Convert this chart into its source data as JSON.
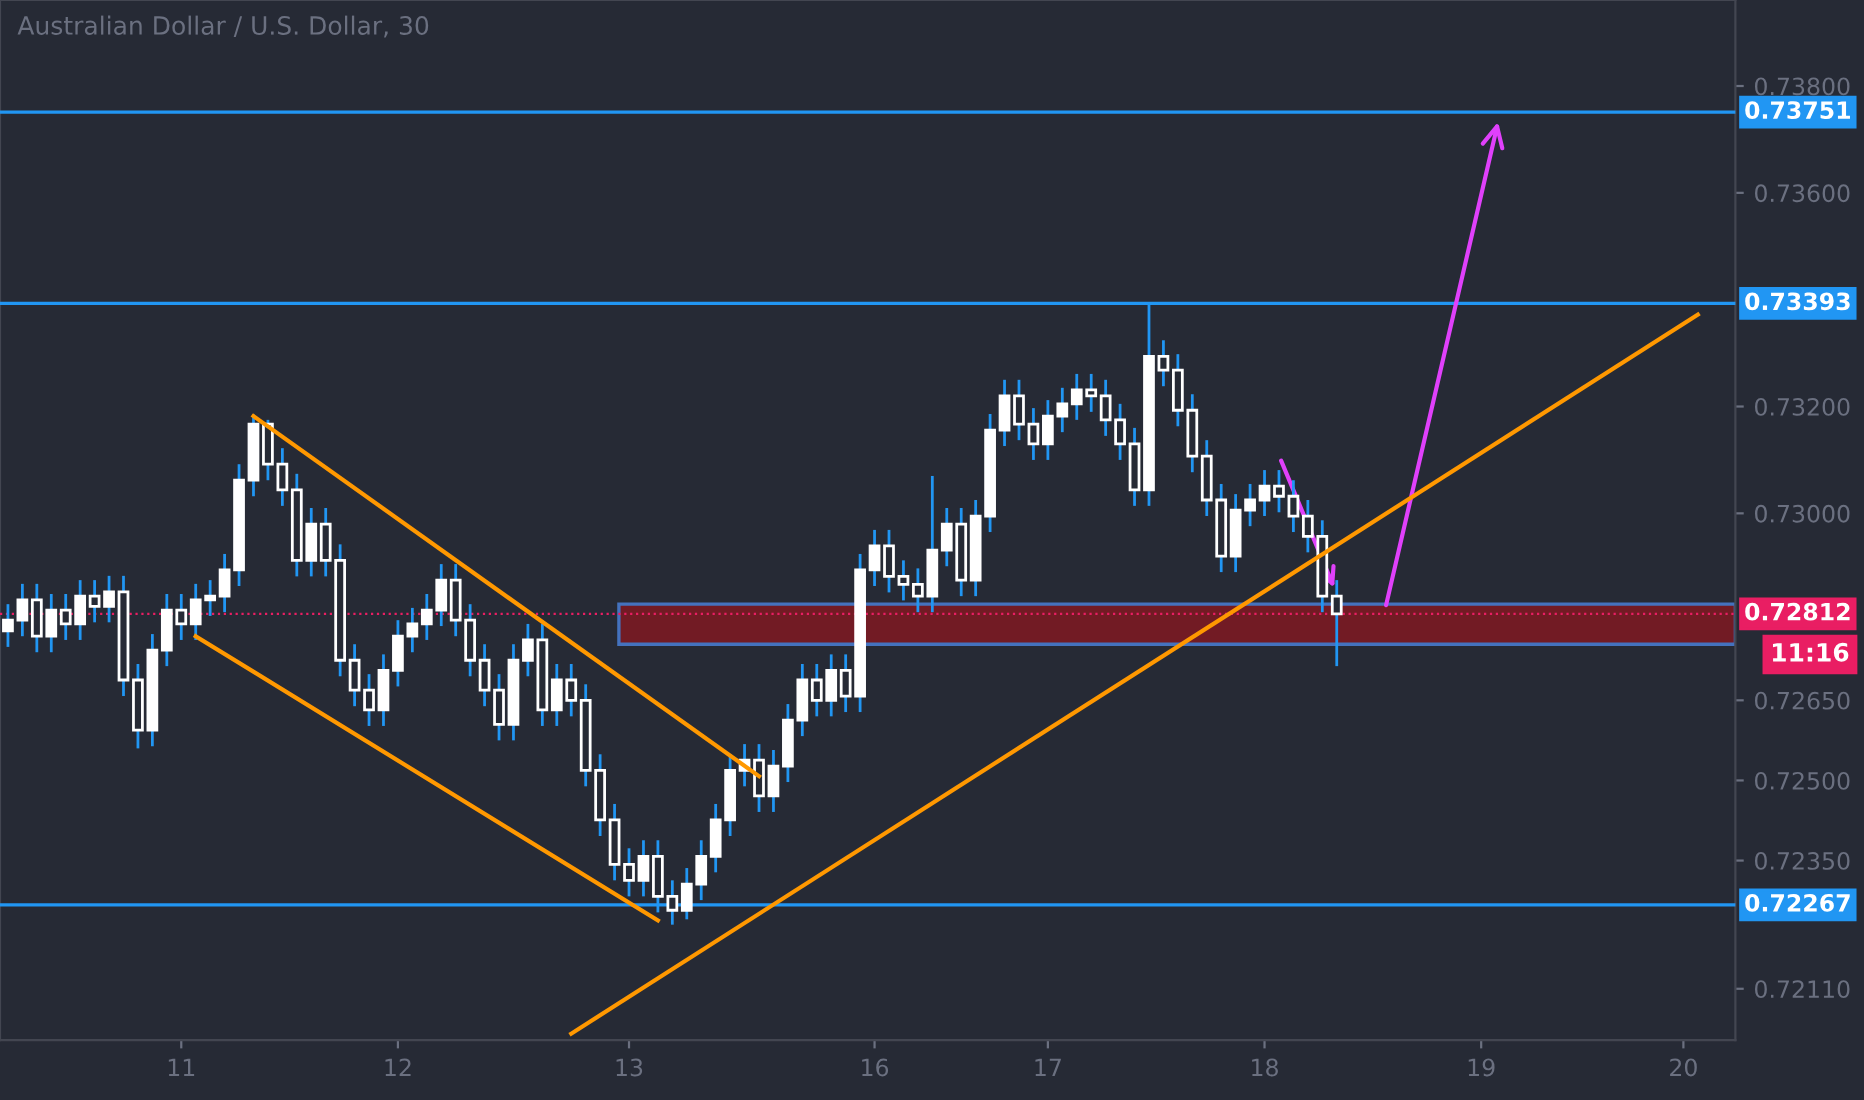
{
  "chart_data": {
    "type": "candlestick",
    "title": "Australian Dollar / U.S. Dollar, 30",
    "categories": [
      null,
      null,
      null,
      null,
      null,
      null,
      null,
      null,
      null,
      null,
      null,
      null,
      "11",
      null,
      null,
      null,
      null,
      null,
      null,
      null,
      null,
      null,
      null,
      null,
      null,
      null,
      null,
      "12",
      null,
      null,
      null,
      null,
      null,
      null,
      null,
      null,
      null,
      null,
      null,
      null,
      null,
      null,
      null,
      "13",
      null,
      null,
      null,
      null,
      null,
      null,
      null,
      null,
      null,
      null,
      null,
      null,
      null,
      null,
      null,
      null,
      "16",
      null,
      null,
      null,
      null,
      null,
      null,
      null,
      null,
      null,
      null,
      null,
      "17",
      null,
      null,
      null,
      null,
      null,
      null,
      null,
      null,
      null,
      null,
      null,
      null,
      null,
      null,
      "18",
      null,
      null,
      null,
      null,
      null,
      null,
      null,
      null,
      null,
      null,
      null,
      null,
      null,
      null,
      "19",
      null,
      null,
      null,
      null,
      null,
      null,
      null,
      null,
      null,
      null,
      null,
      null,
      null,
      "20",
      null
    ],
    "series": [
      {
        "color": "#ffffff",
        "ohlc": [
          [
            0.7278,
            0.7283,
            0.7275,
            0.728
          ],
          [
            0.728,
            0.72868,
            0.7277,
            0.72838
          ],
          [
            0.72838,
            0.72868,
            0.7274,
            0.7277
          ],
          [
            0.7277,
            0.72849,
            0.7274,
            0.72819
          ],
          [
            0.72819,
            0.72849,
            0.72763,
            0.72793
          ],
          [
            0.72793,
            0.72875,
            0.72763,
            0.72845
          ],
          [
            0.72845,
            0.72875,
            0.72796,
            0.72826
          ],
          [
            0.72826,
            0.72883,
            0.72796,
            0.72853
          ],
          [
            0.72853,
            0.72883,
            0.72658,
            0.72688
          ],
          [
            0.72688,
            0.72718,
            0.7256,
            0.72594
          ],
          [
            0.72594,
            0.72774,
            0.72564,
            0.72744
          ],
          [
            0.72744,
            0.72849,
            0.72714,
            0.72819
          ],
          [
            0.72819,
            0.72849,
            0.72763,
            0.72793
          ],
          [
            0.72793,
            0.72868,
            0.72763,
            0.72838
          ],
          [
            0.72838,
            0.72875,
            0.72808,
            0.72845
          ],
          [
            0.72845,
            0.72924,
            0.72815,
            0.72894
          ],
          [
            0.72894,
            0.73092,
            0.72864,
            0.73062
          ],
          [
            0.73062,
            0.73185,
            0.73032,
            0.73167
          ],
          [
            0.73167,
            0.73175,
            0.73062,
            0.73092
          ],
          [
            0.73092,
            0.73122,
            0.73014,
            0.73044
          ],
          [
            0.73044,
            0.73074,
            0.72882,
            0.72912
          ],
          [
            0.72912,
            0.7301,
            0.72882,
            0.7298
          ],
          [
            0.7298,
            0.7301,
            0.72882,
            0.72912
          ],
          [
            0.72912,
            0.72942,
            0.72695,
            0.72725
          ],
          [
            0.72725,
            0.72755,
            0.72639,
            0.72669
          ],
          [
            0.72669,
            0.72699,
            0.72602,
            0.72632
          ],
          [
            0.72632,
            0.72736,
            0.72602,
            0.72706
          ],
          [
            0.72706,
            0.728,
            0.72676,
            0.7277
          ],
          [
            0.7277,
            0.72823,
            0.7274,
            0.72793
          ],
          [
            0.72793,
            0.72849,
            0.72763,
            0.72819
          ],
          [
            0.72819,
            0.72905,
            0.72789,
            0.72875
          ],
          [
            0.72875,
            0.72905,
            0.7277,
            0.728
          ],
          [
            0.728,
            0.7283,
            0.72695,
            0.72725
          ],
          [
            0.72725,
            0.72755,
            0.72639,
            0.72669
          ],
          [
            0.72669,
            0.72699,
            0.72575,
            0.72605
          ],
          [
            0.72605,
            0.72755,
            0.72575,
            0.72725
          ],
          [
            0.72725,
            0.72793,
            0.72695,
            0.72763
          ],
          [
            0.72763,
            0.72793,
            0.72602,
            0.72632
          ],
          [
            0.72632,
            0.72718,
            0.72602,
            0.72688
          ],
          [
            0.72688,
            0.72718,
            0.7262,
            0.7265
          ],
          [
            0.7265,
            0.7268,
            0.72489,
            0.72519
          ],
          [
            0.72519,
            0.72549,
            0.72396,
            0.72426
          ],
          [
            0.72426,
            0.72456,
            0.72313,
            0.72343
          ],
          [
            0.72343,
            0.72373,
            0.72283,
            0.72313
          ],
          [
            0.72313,
            0.72388,
            0.72283,
            0.72358
          ],
          [
            0.72358,
            0.72388,
            0.72253,
            0.72283
          ],
          [
            0.72283,
            0.72313,
            0.7223,
            0.72257
          ],
          [
            0.72257,
            0.72336,
            0.7224,
            0.72306
          ],
          [
            0.72306,
            0.72388,
            0.72276,
            0.72358
          ],
          [
            0.72358,
            0.72456,
            0.72328,
            0.72426
          ],
          [
            0.72426,
            0.72549,
            0.72396,
            0.72519
          ],
          [
            0.72519,
            0.72568,
            0.72489,
            0.72538
          ],
          [
            0.72538,
            0.72568,
            0.72441,
            0.72471
          ],
          [
            0.72471,
            0.72557,
            0.72441,
            0.72527
          ],
          [
            0.72527,
            0.72643,
            0.72497,
            0.72613
          ],
          [
            0.72613,
            0.72718,
            0.72583,
            0.72688
          ],
          [
            0.72688,
            0.72718,
            0.7262,
            0.7265
          ],
          [
            0.7265,
            0.72736,
            0.7262,
            0.72706
          ],
          [
            0.72706,
            0.72736,
            0.72628,
            0.72658
          ],
          [
            0.72658,
            0.72924,
            0.72628,
            0.72894
          ],
          [
            0.72894,
            0.72969,
            0.72864,
            0.72939
          ],
          [
            0.72939,
            0.72969,
            0.72852,
            0.72882
          ],
          [
            0.72882,
            0.72912,
            0.72837,
            0.72867
          ],
          [
            0.72867,
            0.72897,
            0.72815,
            0.72845
          ],
          [
            0.72845,
            0.7307,
            0.72815,
            0.72931
          ],
          [
            0.72931,
            0.7301,
            0.72901,
            0.7298
          ],
          [
            0.7298,
            0.7301,
            0.72845,
            0.72875
          ],
          [
            0.72875,
            0.73025,
            0.72845,
            0.72995
          ],
          [
            0.72995,
            0.73186,
            0.72965,
            0.73156
          ],
          [
            0.73156,
            0.7325,
            0.73126,
            0.7322
          ],
          [
            0.7322,
            0.7325,
            0.73137,
            0.73167
          ],
          [
            0.73167,
            0.73197,
            0.731,
            0.7313
          ],
          [
            0.7313,
            0.73212,
            0.731,
            0.73182
          ],
          [
            0.73182,
            0.73235,
            0.73152,
            0.73205
          ],
          [
            0.73205,
            0.73261,
            0.73175,
            0.73231
          ],
          [
            0.73231,
            0.73261,
            0.7319,
            0.7322
          ],
          [
            0.7322,
            0.7325,
            0.73145,
            0.73175
          ],
          [
            0.73175,
            0.73205,
            0.731,
            0.7313
          ],
          [
            0.7313,
            0.7316,
            0.73014,
            0.73044
          ],
          [
            0.73044,
            0.73393,
            0.73014,
            0.73294
          ],
          [
            0.73294,
            0.73324,
            0.73238,
            0.73268
          ],
          [
            0.73268,
            0.73298,
            0.73163,
            0.73193
          ],
          [
            0.73193,
            0.73223,
            0.73077,
            0.73107
          ],
          [
            0.73107,
            0.73137,
            0.72995,
            0.73025
          ],
          [
            0.73025,
            0.73055,
            0.7289,
            0.7292
          ],
          [
            0.7292,
            0.73036,
            0.7289,
            0.73006
          ],
          [
            0.73006,
            0.73055,
            0.72976,
            0.73025
          ],
          [
            0.73025,
            0.73081,
            0.72995,
            0.73051
          ],
          [
            0.73051,
            0.73081,
            0.73002,
            0.73032
          ],
          [
            0.73032,
            0.73062,
            0.72965,
            0.72995
          ],
          [
            0.72995,
            0.73025,
            0.72927,
            0.72957
          ],
          [
            0.72957,
            0.72987,
            0.72815,
            0.72845
          ],
          [
            0.72845,
            0.72875,
            0.72714,
            0.72812
          ],
          null,
          null,
          null,
          null,
          null,
          null,
          null,
          null,
          null,
          null,
          null,
          null,
          null,
          null,
          null,
          null,
          null,
          null,
          null,
          null,
          null,
          null,
          null,
          null,
          null
        ]
      },
      {
        "type": "line",
        "color": "#ff9800",
        "values": [
          null,
          null,
          null,
          null,
          null,
          null,
          null,
          null,
          null,
          null,
          null,
          null,
          null,
          null,
          null,
          null,
          null,
          0.73182,
          null,
          null,
          null,
          null,
          null,
          null,
          null,
          null,
          null,
          null,
          null,
          null,
          null,
          null,
          null,
          null,
          null,
          null,
          null,
          null,
          null,
          null,
          null,
          null,
          null,
          null,
          null,
          null,
          null,
          null,
          null,
          null,
          null,
          null,
          0.72508,
          null,
          null,
          null,
          null,
          null,
          null,
          null,
          null,
          null,
          null,
          null,
          null,
          null,
          null,
          null,
          null,
          null,
          null,
          null,
          null,
          null,
          null,
          null,
          null,
          null,
          null,
          null,
          null,
          null,
          null,
          null,
          null,
          null,
          null,
          null,
          null,
          null,
          null,
          null,
          null,
          null,
          null,
          null,
          null,
          null,
          null,
          null,
          null,
          null,
          null,
          null,
          null,
          null,
          null,
          null,
          null,
          null,
          null,
          null,
          null,
          null,
          null,
          null,
          null,
          null
        ]
      },
      {
        "type": "line",
        "color": "#ff9800",
        "values": [
          null,
          null,
          null,
          null,
          null,
          null,
          null,
          null,
          null,
          null,
          null,
          null,
          null,
          0.7277,
          null,
          null,
          null,
          null,
          null,
          null,
          null,
          null,
          null,
          null,
          null,
          null,
          null,
          null,
          null,
          null,
          null,
          null,
          null,
          null,
          null,
          null,
          null,
          null,
          null,
          null,
          null,
          null,
          null,
          null,
          null,
          0.72238,
          null,
          null,
          null,
          null,
          null,
          null,
          null,
          null,
          null,
          null,
          null,
          null,
          null,
          null,
          null,
          null,
          null,
          null,
          null,
          null,
          null,
          null,
          null,
          null,
          null,
          null,
          null,
          null,
          null,
          null,
          null,
          null,
          null,
          null,
          null,
          null,
          null,
          null,
          null,
          null,
          null,
          null,
          null,
          null,
          null,
          null,
          null,
          null,
          null,
          null,
          null,
          null,
          null,
          null,
          null,
          null,
          null,
          null,
          null,
          null,
          null,
          null,
          null,
          null,
          null,
          null,
          null,
          null,
          null,
          null,
          null,
          null
        ]
      },
      {
        "type": "line",
        "color": "#ff9800",
        "values": [
          null,
          null,
          null,
          null,
          null,
          null,
          null,
          null,
          null,
          null,
          null,
          null,
          null,
          null,
          null,
          null,
          null,
          null,
          null,
          null,
          null,
          null,
          null,
          null,
          null,
          null,
          null,
          null,
          null,
          null,
          null,
          null,
          null,
          null,
          null,
          null,
          null,
          null,
          null,
          0.72026,
          null,
          null,
          null,
          null,
          null,
          null,
          null,
          null,
          null,
          null,
          null,
          null,
          null,
          null,
          null,
          null,
          null,
          null,
          null,
          null,
          null,
          null,
          null,
          null,
          null,
          null,
          null,
          null,
          null,
          null,
          null,
          null,
          null,
          null,
          null,
          null,
          null,
          null,
          null,
          null,
          null,
          null,
          null,
          null,
          null,
          null,
          null,
          null,
          null,
          null,
          null,
          null,
          null,
          null,
          null,
          null,
          null,
          null,
          null,
          null,
          null,
          null,
          null,
          null,
          null,
          null,
          null,
          null,
          null,
          null,
          null,
          null,
          null,
          null,
          null,
          null,
          null,
          0.73372
        ]
      }
    ],
    "ylim": [
      0.72014,
      0.73961
    ],
    "yticks": [
      {
        "value": 0.7211,
        "label": "0.72110"
      },
      {
        "value": 0.7235,
        "label": "0.72350"
      },
      {
        "value": 0.725,
        "label": "0.72500"
      },
      {
        "value": 0.7265,
        "label": "0.72650"
      },
      {
        "value": 0.73,
        "label": "0.73000"
      },
      {
        "value": 0.732,
        "label": "0.73200"
      },
      {
        "value": 0.736,
        "label": "0.73600"
      },
      {
        "value": 0.738,
        "label": "0.73800"
      }
    ],
    "ref_lines": [
      {
        "axis": "y",
        "value": 0.73751,
        "label": "0.73751",
        "color": "#2196f3",
        "line_style": "solid"
      },
      {
        "axis": "y",
        "value": 0.73393,
        "label": "0.73393",
        "color": "#2196f3",
        "line_style": "solid"
      },
      {
        "axis": "y",
        "value": 0.72267,
        "label": "0.72267",
        "color": "#2196f3",
        "line_style": "solid"
      },
      {
        "axis": "y",
        "value": 0.72812,
        "label": "0.72812",
        "color": "#e91e63",
        "line_style": "dotted"
      }
    ],
    "bands": [
      {
        "axis": "y",
        "from": 0.72755,
        "to": 0.7283,
        "color": "#801922"
      }
    ],
    "annotations": [
      "11:16"
    ],
    "grid": false
  }
}
